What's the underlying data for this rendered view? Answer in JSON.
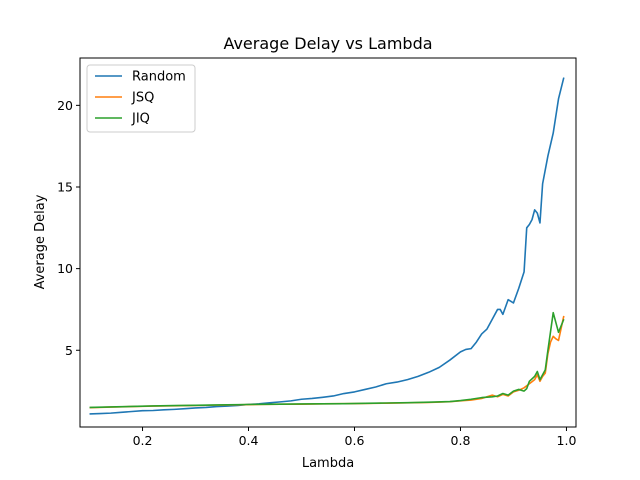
{
  "chart_data": {
    "type": "line",
    "title": "Average Delay vs Lambda",
    "xlabel": "Lambda",
    "ylabel": "Average Delay",
    "xlim": [
      0.082,
      1.018
    ],
    "ylim": [
      0.3,
      22.9
    ],
    "xticks": [
      0.2,
      0.4,
      0.6,
      0.8,
      1.0
    ],
    "xtick_labels": [
      "0.2",
      "0.4",
      "0.6",
      "0.8",
      "1.0"
    ],
    "yticks": [
      5,
      10,
      15,
      20
    ],
    "ytick_labels": [
      "5",
      "10",
      "15",
      "20"
    ],
    "grid": false,
    "legend": "upper-left",
    "series": [
      {
        "name": "Random",
        "color": "#1f77b4",
        "points": [
          [
            0.1,
            1.1
          ],
          [
            0.12,
            1.12
          ],
          [
            0.14,
            1.15
          ],
          [
            0.16,
            1.2
          ],
          [
            0.18,
            1.25
          ],
          [
            0.2,
            1.3
          ],
          [
            0.22,
            1.31
          ],
          [
            0.24,
            1.35
          ],
          [
            0.26,
            1.38
          ],
          [
            0.28,
            1.42
          ],
          [
            0.3,
            1.47
          ],
          [
            0.32,
            1.5
          ],
          [
            0.34,
            1.55
          ],
          [
            0.36,
            1.58
          ],
          [
            0.38,
            1.62
          ],
          [
            0.4,
            1.68
          ],
          [
            0.42,
            1.72
          ],
          [
            0.44,
            1.78
          ],
          [
            0.46,
            1.84
          ],
          [
            0.48,
            1.9
          ],
          [
            0.5,
            2.0
          ],
          [
            0.52,
            2.05
          ],
          [
            0.54,
            2.12
          ],
          [
            0.56,
            2.2
          ],
          [
            0.58,
            2.35
          ],
          [
            0.6,
            2.45
          ],
          [
            0.62,
            2.6
          ],
          [
            0.64,
            2.75
          ],
          [
            0.66,
            2.95
          ],
          [
            0.68,
            3.05
          ],
          [
            0.7,
            3.2
          ],
          [
            0.72,
            3.4
          ],
          [
            0.74,
            3.65
          ],
          [
            0.76,
            3.95
          ],
          [
            0.78,
            4.4
          ],
          [
            0.8,
            4.9
          ],
          [
            0.81,
            5.05
          ],
          [
            0.82,
            5.1
          ],
          [
            0.83,
            5.5
          ],
          [
            0.84,
            6.0
          ],
          [
            0.85,
            6.3
          ],
          [
            0.86,
            6.9
          ],
          [
            0.87,
            7.5
          ],
          [
            0.875,
            7.5
          ],
          [
            0.88,
            7.2
          ],
          [
            0.89,
            8.1
          ],
          [
            0.9,
            7.9
          ],
          [
            0.91,
            8.8
          ],
          [
            0.92,
            9.8
          ],
          [
            0.925,
            12.5
          ],
          [
            0.93,
            12.7
          ],
          [
            0.935,
            13.0
          ],
          [
            0.94,
            13.6
          ],
          [
            0.945,
            13.4
          ],
          [
            0.95,
            12.8
          ],
          [
            0.955,
            15.2
          ],
          [
            0.965,
            16.9
          ],
          [
            0.975,
            18.3
          ],
          [
            0.985,
            20.4
          ],
          [
            0.995,
            21.7
          ]
        ]
      },
      {
        "name": "JSQ",
        "color": "#ff7f0e",
        "points": [
          [
            0.1,
            1.48
          ],
          [
            0.14,
            1.52
          ],
          [
            0.18,
            1.55
          ],
          [
            0.22,
            1.58
          ],
          [
            0.26,
            1.6
          ],
          [
            0.3,
            1.62
          ],
          [
            0.34,
            1.64
          ],
          [
            0.38,
            1.66
          ],
          [
            0.42,
            1.68
          ],
          [
            0.46,
            1.7
          ],
          [
            0.5,
            1.7
          ],
          [
            0.54,
            1.72
          ],
          [
            0.58,
            1.73
          ],
          [
            0.62,
            1.74
          ],
          [
            0.66,
            1.76
          ],
          [
            0.7,
            1.78
          ],
          [
            0.74,
            1.8
          ],
          [
            0.78,
            1.85
          ],
          [
            0.8,
            1.9
          ],
          [
            0.82,
            1.95
          ],
          [
            0.84,
            2.05
          ],
          [
            0.86,
            2.25
          ],
          [
            0.87,
            2.15
          ],
          [
            0.88,
            2.3
          ],
          [
            0.89,
            2.2
          ],
          [
            0.9,
            2.45
          ],
          [
            0.91,
            2.55
          ],
          [
            0.92,
            2.7
          ],
          [
            0.93,
            2.95
          ],
          [
            0.94,
            3.2
          ],
          [
            0.945,
            3.5
          ],
          [
            0.95,
            3.1
          ],
          [
            0.955,
            3.4
          ],
          [
            0.96,
            3.6
          ],
          [
            0.965,
            4.8
          ],
          [
            0.97,
            5.5
          ],
          [
            0.975,
            5.85
          ],
          [
            0.98,
            5.7
          ],
          [
            0.985,
            5.6
          ],
          [
            0.995,
            7.1
          ]
        ]
      },
      {
        "name": "JIQ",
        "color": "#2ca02c",
        "points": [
          [
            0.1,
            1.5
          ],
          [
            0.14,
            1.53
          ],
          [
            0.18,
            1.56
          ],
          [
            0.22,
            1.59
          ],
          [
            0.26,
            1.61
          ],
          [
            0.3,
            1.63
          ],
          [
            0.34,
            1.65
          ],
          [
            0.38,
            1.67
          ],
          [
            0.42,
            1.69
          ],
          [
            0.46,
            1.7
          ],
          [
            0.5,
            1.71
          ],
          [
            0.54,
            1.72
          ],
          [
            0.58,
            1.73
          ],
          [
            0.62,
            1.75
          ],
          [
            0.66,
            1.77
          ],
          [
            0.7,
            1.79
          ],
          [
            0.74,
            1.82
          ],
          [
            0.78,
            1.86
          ],
          [
            0.8,
            1.92
          ],
          [
            0.82,
            2.0
          ],
          [
            0.84,
            2.1
          ],
          [
            0.86,
            2.15
          ],
          [
            0.87,
            2.2
          ],
          [
            0.88,
            2.35
          ],
          [
            0.89,
            2.25
          ],
          [
            0.9,
            2.5
          ],
          [
            0.91,
            2.6
          ],
          [
            0.92,
            2.5
          ],
          [
            0.925,
            2.65
          ],
          [
            0.93,
            3.1
          ],
          [
            0.94,
            3.4
          ],
          [
            0.945,
            3.7
          ],
          [
            0.95,
            3.2
          ],
          [
            0.955,
            3.5
          ],
          [
            0.96,
            3.8
          ],
          [
            0.965,
            5.0
          ],
          [
            0.975,
            7.3
          ],
          [
            0.985,
            6.1
          ],
          [
            0.995,
            6.9
          ]
        ]
      }
    ]
  }
}
